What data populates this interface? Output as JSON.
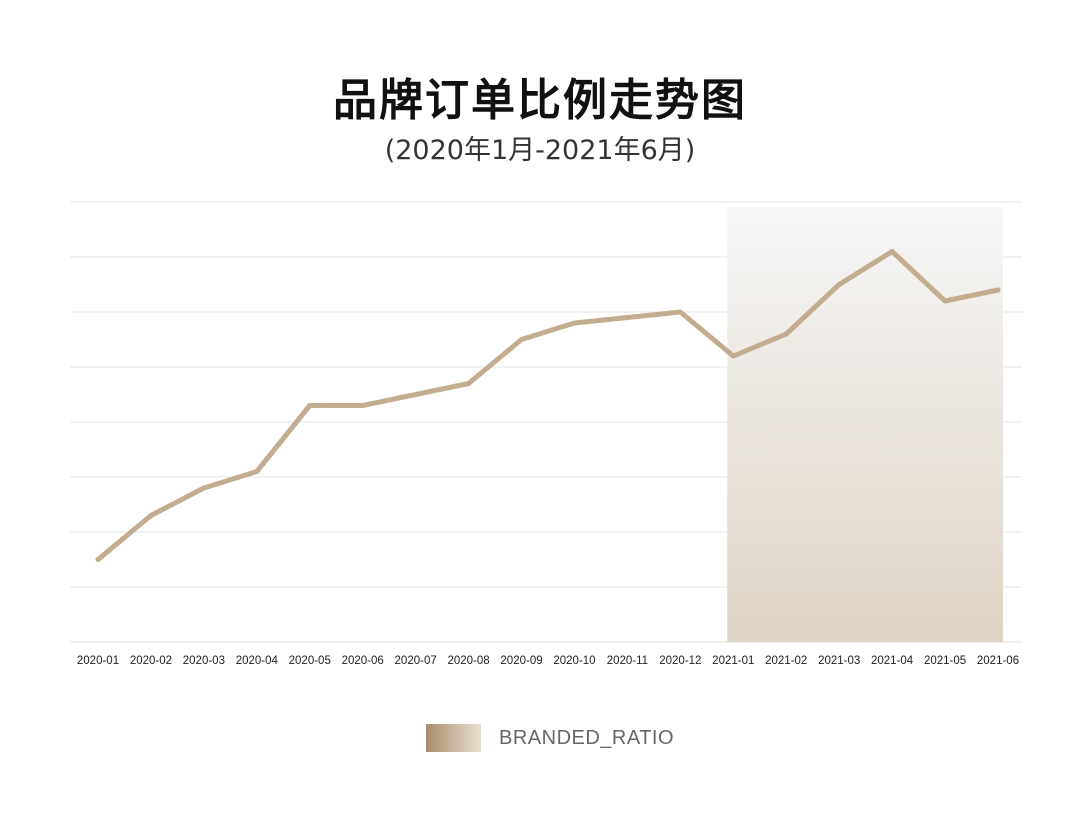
{
  "title": "品牌订单比例走势图",
  "subtitle": "(2020年1月-2021年6月)",
  "legend": {
    "label": "BRANDED_RATIO",
    "color_from": "#a88e6c",
    "color_to": "#e9dfd2"
  },
  "colors": {
    "line": "#c2ad90",
    "grid": "#e6e6e6",
    "highlight_top": "#f7f7f7",
    "highlight_bottom": "#ddd3c5"
  },
  "chart_data": {
    "type": "line",
    "title": "品牌订单比例走势图",
    "subtitle": "(2020年1月-2021年6月)",
    "categories": [
      "2020-01",
      "2020-02",
      "2020-03",
      "2020-04",
      "2020-05",
      "2020-06",
      "2020-07",
      "2020-08",
      "2020-09",
      "2020-10",
      "2020-11",
      "2020-12",
      "2021-01",
      "2021-02",
      "2021-03",
      "2021-04",
      "2021-05",
      "2021-06"
    ],
    "series": [
      {
        "name": "BRANDED_RATIO",
        "values": [
          1.5,
          2.3,
          2.8,
          3.1,
          4.3,
          4.3,
          4.5,
          4.7,
          5.5,
          5.8,
          5.9,
          6.0,
          5.2,
          5.6,
          6.5,
          7.1,
          6.2,
          6.4
        ]
      }
    ],
    "highlight_range": [
      "2021-01",
      "2021-06"
    ],
    "ylim": [
      0,
      8
    ],
    "y_gridlines": 8,
    "y_tick_labels_shown": false,
    "grid": true,
    "legend_position": "bottom-center",
    "xlabel": "",
    "ylabel": ""
  }
}
